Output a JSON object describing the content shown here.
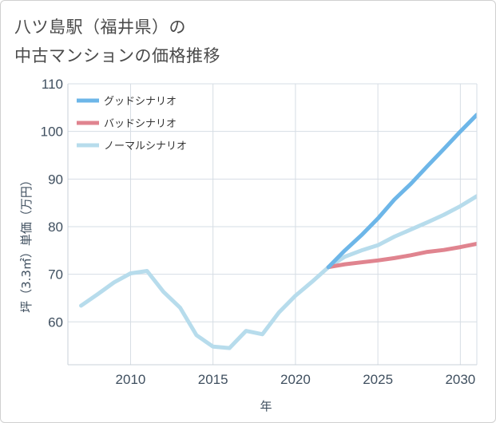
{
  "title_line1": "八ツ島駅（福井県）の",
  "title_line2": "中古マンションの価格推移",
  "chart_data": {
    "type": "line",
    "xlabel": "年",
    "ylabel": "坪（3.3㎡）単価（万円）",
    "xlim": [
      2006.2,
      2031
    ],
    "ylim": [
      51,
      110
    ],
    "xticks": [
      2010,
      2015,
      2020,
      2025,
      2030
    ],
    "yticks": [
      60,
      70,
      80,
      90,
      100,
      110
    ],
    "grid": true,
    "legend_position": "top-left",
    "series": [
      {
        "name": "グッドシナリオ",
        "color": "#6db6e8",
        "x": [
          2022,
          2023,
          2024,
          2025,
          2026,
          2027,
          2028,
          2029,
          2030,
          2031
        ],
        "y": [
          71.5,
          75.0,
          78.2,
          81.7,
          85.7,
          89.0,
          92.7,
          96.3,
          100.0,
          103.5
        ]
      },
      {
        "name": "バッドシナリオ",
        "color": "#e0848f",
        "x": [
          2022,
          2023,
          2024,
          2025,
          2026,
          2027,
          2028,
          2029,
          2030,
          2031
        ],
        "y": [
          71.5,
          72.1,
          72.5,
          72.9,
          73.4,
          74.0,
          74.7,
          75.1,
          75.7,
          76.4
        ]
      },
      {
        "name": "ノーマルシナリオ",
        "color": "#b7dcec",
        "x": [
          2007,
          2008,
          2009,
          2010,
          2011,
          2012,
          2013,
          2014,
          2015,
          2016,
          2017,
          2018,
          2019,
          2020,
          2021,
          2022,
          2023,
          2024,
          2025,
          2026,
          2027,
          2028,
          2029,
          2030,
          2031
        ],
        "y": [
          63.4,
          65.8,
          68.3,
          70.2,
          70.7,
          66.3,
          63.0,
          57.2,
          54.8,
          54.5,
          58.1,
          57.4,
          62.0,
          65.5,
          68.4,
          71.5,
          73.7,
          75.0,
          76.1,
          77.9,
          79.4,
          80.9,
          82.5,
          84.3,
          86.4
        ]
      }
    ]
  }
}
